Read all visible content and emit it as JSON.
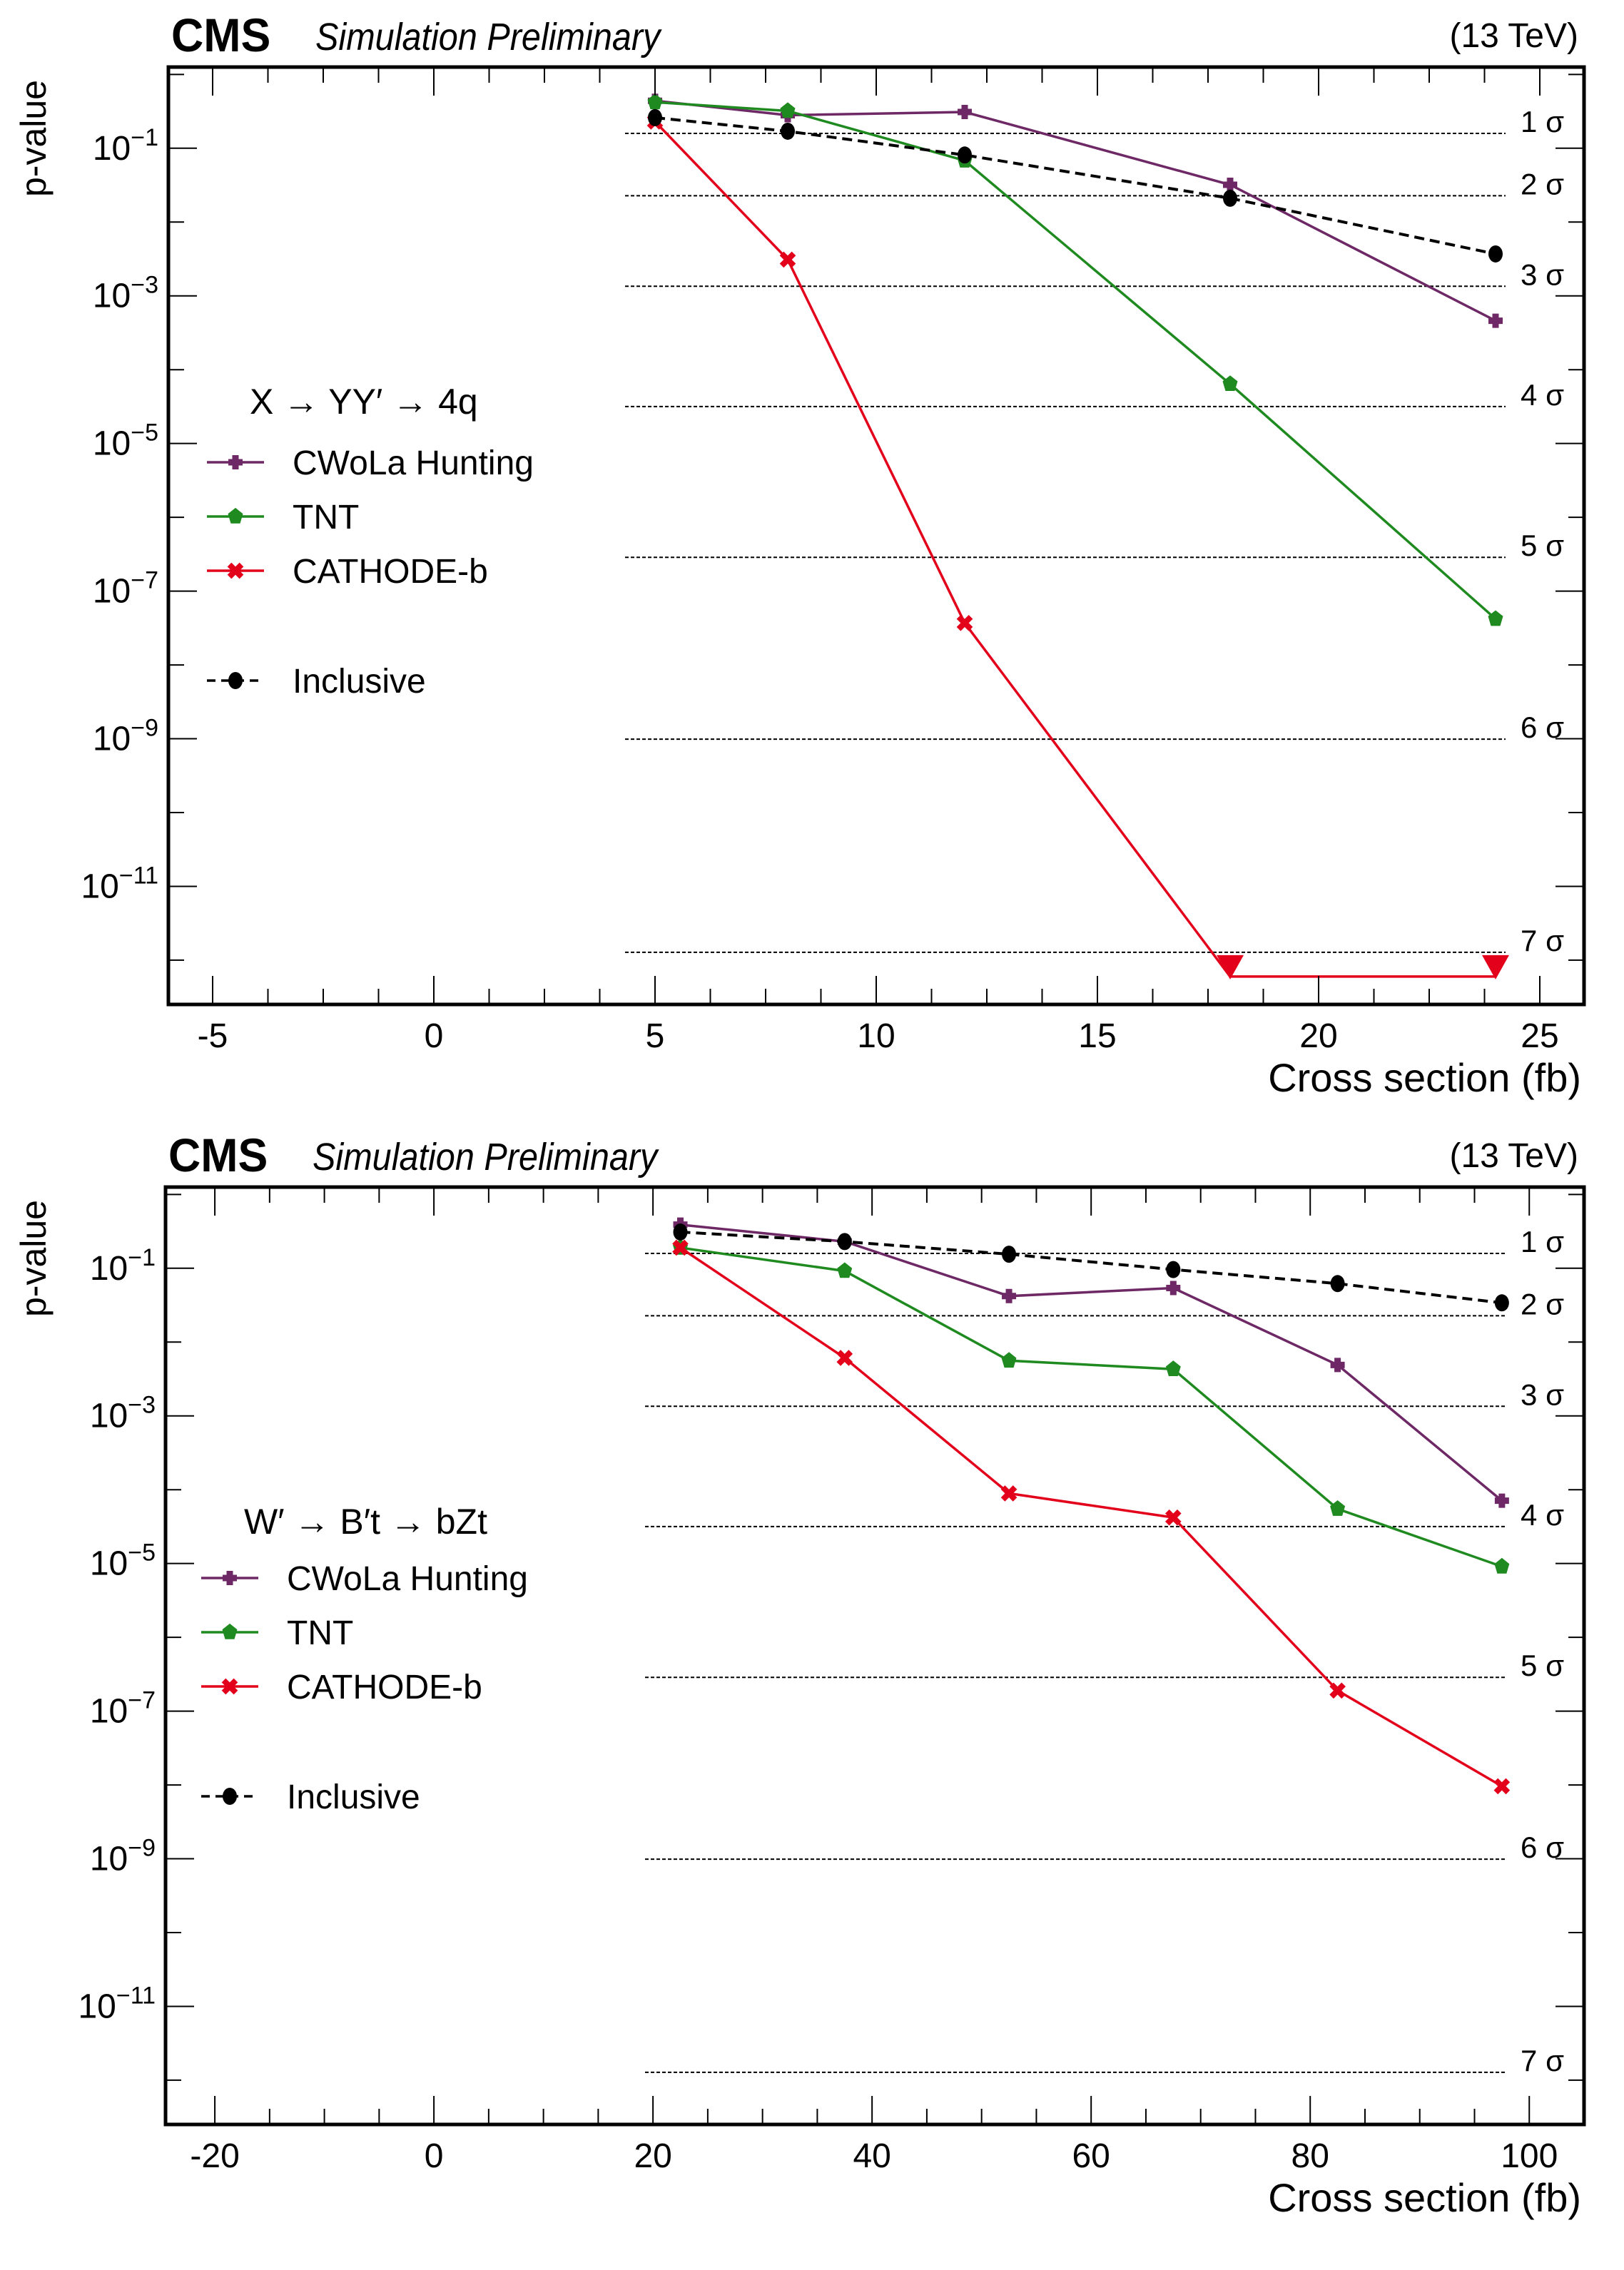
{
  "chart_data": [
    {
      "type": "line",
      "experiment_label": "CMS",
      "status_label": "Simulation Preliminary",
      "energy_label": "(13 TeV)",
      "xlabel": "Cross section (fb)",
      "ylabel": "p-value",
      "xlim": [
        -6.0,
        26.0
      ],
      "ylim_log10": [
        -12.6,
        0.1
      ],
      "yscale": "log",
      "x_ticks": [
        -5,
        0,
        5,
        10,
        15,
        20,
        25
      ],
      "x_tick_labels": [
        "-5",
        "0",
        "5",
        "10",
        "15",
        "20",
        "25"
      ],
      "y_ticks_log10": [
        -1,
        -3,
        -5,
        -7,
        -9,
        -11
      ],
      "y_tick_labels": [
        {
          "base": "10",
          "exp": "−1"
        },
        {
          "base": "10",
          "exp": "−3"
        },
        {
          "base": "10",
          "exp": "−5"
        },
        {
          "base": "10",
          "exp": "−7"
        },
        {
          "base": "10",
          "exp": "−9"
        },
        {
          "base": "10",
          "exp": "−11"
        }
      ],
      "legend_title": "X → YY′ → 4q",
      "legend_position": "middle-left",
      "sigma_lines": [
        {
          "label": "1 σ",
          "p": 0.1587
        },
        {
          "label": "2 σ",
          "p": 0.02275
        },
        {
          "label": "3 σ",
          "p": 0.00135
        },
        {
          "label": "4 σ",
          "p": 3.17e-05
        },
        {
          "label": "5 σ",
          "p": 2.87e-07
        },
        {
          "label": "6 σ",
          "p": 9.87e-10
        },
        {
          "label": "7 σ",
          "p": 1.28e-12
        }
      ],
      "x": [
        5,
        8,
        12,
        18,
        24
      ],
      "series": [
        {
          "name": "CWoLa Hunting",
          "color": "#6d2865",
          "marker": "plus",
          "dashed": false,
          "values": [
            0.44,
            0.28,
            0.31,
            0.032,
            0.00046
          ]
        },
        {
          "name": "TNT",
          "color": "#1f8a1f",
          "marker": "pentagon",
          "dashed": false,
          "values": [
            0.42,
            0.32,
            0.068,
            6.4e-05,
            4.2e-08
          ]
        },
        {
          "name": "CATHODE-b",
          "color": "#e3001b",
          "marker": "x",
          "dashed": false,
          "values": [
            0.23,
            0.0031,
            3.7e-08,
            6e-13,
            6e-13
          ],
          "upper_limit": [
            false,
            false,
            false,
            true,
            true
          ]
        },
        {
          "name": "Inclusive",
          "color": "#000000",
          "marker": "circle",
          "dashed": true,
          "values": [
            0.26,
            0.17,
            0.081,
            0.021,
            0.0037
          ]
        }
      ]
    },
    {
      "type": "line",
      "experiment_label": "CMS",
      "status_label": "Simulation Preliminary",
      "energy_label": "(13 TeV)",
      "xlabel": "Cross section (fb)",
      "ylabel": "p-value",
      "xlim": [
        -24.5,
        105.0
      ],
      "ylim_log10": [
        -12.6,
        0.1
      ],
      "yscale": "log",
      "x_ticks": [
        -20,
        0,
        20,
        40,
        60,
        80,
        100
      ],
      "x_tick_labels": [
        "-20",
        "0",
        "20",
        "40",
        "60",
        "80",
        "100"
      ],
      "y_ticks_log10": [
        -1,
        -3,
        -5,
        -7,
        -9,
        -11
      ],
      "y_tick_labels": [
        {
          "base": "10",
          "exp": "−1"
        },
        {
          "base": "10",
          "exp": "−3"
        },
        {
          "base": "10",
          "exp": "−5"
        },
        {
          "base": "10",
          "exp": "−7"
        },
        {
          "base": "10",
          "exp": "−9"
        },
        {
          "base": "10",
          "exp": "−11"
        }
      ],
      "legend_title": "W′ → B′t → bZt",
      "legend_position": "middle-left",
      "sigma_lines": [
        {
          "label": "1 σ",
          "p": 0.1587
        },
        {
          "label": "2 σ",
          "p": 0.02275
        },
        {
          "label": "3 σ",
          "p": 0.00135
        },
        {
          "label": "4 σ",
          "p": 3.17e-05
        },
        {
          "label": "5 σ",
          "p": 2.87e-07
        },
        {
          "label": "6 σ",
          "p": 9.87e-10
        },
        {
          "label": "7 σ",
          "p": 1.28e-12
        }
      ],
      "x": [
        22.5,
        37.5,
        52.5,
        67.5,
        82.5,
        97.5
      ],
      "series": [
        {
          "name": "CWoLa Hunting",
          "color": "#6d2865",
          "marker": "plus",
          "dashed": false,
          "values": [
            0.39,
            0.23,
            0.042,
            0.054,
            0.0049,
            7.1e-05
          ]
        },
        {
          "name": "TNT",
          "color": "#1f8a1f",
          "marker": "pentagon",
          "dashed": false,
          "values": [
            0.19,
            0.092,
            0.0056,
            0.0043,
            5.5e-05,
            9.1e-06
          ]
        },
        {
          "name": "CATHODE-b",
          "color": "#e3001b",
          "marker": "x",
          "dashed": false,
          "values": [
            0.19,
            0.0061,
            8.9e-05,
            4.2e-05,
            1.9e-07,
            9.6e-09
          ]
        },
        {
          "name": "Inclusive",
          "color": "#000000",
          "marker": "circle",
          "dashed": true,
          "values": [
            0.31,
            0.23,
            0.155,
            0.096,
            0.062,
            0.034
          ]
        }
      ]
    }
  ]
}
